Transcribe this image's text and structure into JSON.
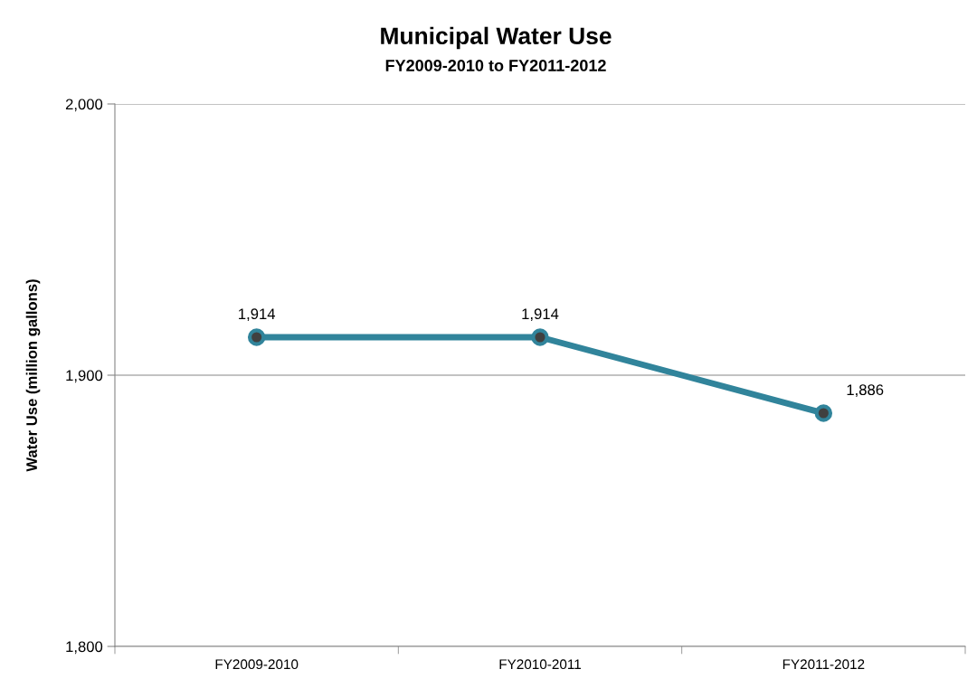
{
  "chart_data": {
    "type": "line",
    "title": "Municipal Water Use",
    "subtitle": "FY2009-2010 to FY2011-2012",
    "ylabel": "Water Use (million gallons)",
    "categories": [
      "FY2009-2010",
      "FY2010-2011",
      "FY2011-2012"
    ],
    "series": [
      {
        "color": "#31849b",
        "values": [
          1914,
          1914,
          1886
        ]
      }
    ],
    "value_labels": [
      "1,914",
      "1,914",
      "1,886"
    ],
    "ylim": [
      1800,
      2000
    ],
    "yticks": [
      {
        "value": 1800,
        "label": "1,800"
      },
      {
        "value": 1900,
        "label": "1,900"
      },
      {
        "value": 2000,
        "label": "2,000"
      }
    ],
    "grid": "y",
    "marker": "circle",
    "line_style": "solid",
    "legend": false
  }
}
